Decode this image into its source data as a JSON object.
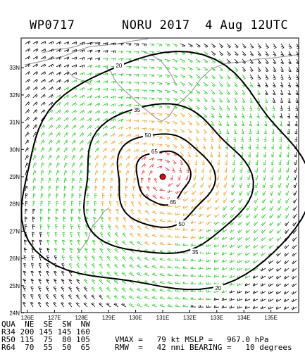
{
  "header": {
    "storm_id": "WP0717",
    "title": "NORU 2017  4 Aug 12UTC"
  },
  "map": {
    "lat_labels": [
      "33N",
      "32N",
      "31N",
      "30N",
      "29N",
      "28N",
      "27N",
      "26N",
      "25N",
      "24N"
    ],
    "lon_labels": [
      "126E",
      "127E",
      "128E",
      "129E",
      "130E",
      "131E",
      "132E",
      "133E",
      "134E",
      "135E"
    ],
    "center": {
      "lat": 29.0,
      "lon": 131.0
    },
    "contours": [
      {
        "label": "20",
        "value": 20
      },
      {
        "label": "35",
        "value": 35
      },
      {
        "label": "50",
        "value": 50
      },
      {
        "label": "65",
        "value": 65
      }
    ],
    "colors": {
      "coast": "#a0a0a0",
      "barb_low": "#000000",
      "barb_34": "#22cc22",
      "barb_50": "#f0a020",
      "barb_64": "#ee3333",
      "contour": "#000000",
      "center": "#ee0000"
    }
  },
  "footer": {
    "table_header": "QUA  NE  SE  SW  NW",
    "rows": [
      {
        "q": "R34",
        "vals": "200 145 145 160"
      },
      {
        "q": "R50",
        "vals": "115  75  80 105"
      },
      {
        "q": "R64",
        "vals": " 70  55  50  65"
      }
    ],
    "vmax_line": "VMAX =   79 kt MSLP =   967.0 hPa",
    "rmw_line": "RMW  =   42 nmi BEARING =   10 degrees"
  }
}
